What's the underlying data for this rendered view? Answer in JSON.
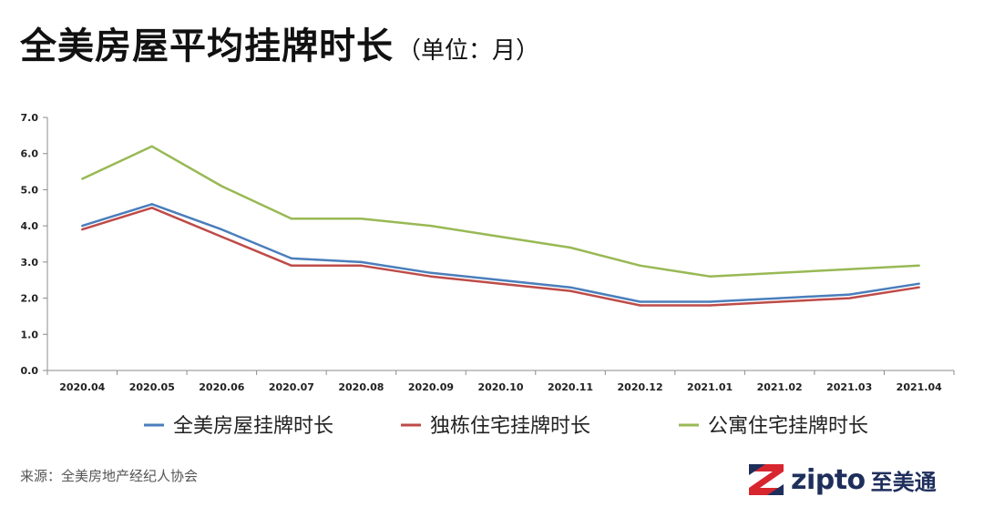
{
  "title": {
    "main": "全美房屋平均挂牌时长",
    "sub": "（单位：月）"
  },
  "source": "来源：全美房地产经纪人协会",
  "brand": {
    "name": "zipto",
    "name_cn": "至美通",
    "icon": "zipto-logo-icon",
    "colors": {
      "red": "#d8262f",
      "navy": "#1f2f5c"
    }
  },
  "chart_data": {
    "type": "line",
    "categories": [
      "2020.04",
      "2020.05",
      "2020.06",
      "2020.07",
      "2020.08",
      "2020.09",
      "2020.10",
      "2020.11",
      "2020.12",
      "2021.01",
      "2021.02",
      "2021.03",
      "2021.04"
    ],
    "ylim": [
      0,
      7
    ],
    "yticks": [
      "0.0",
      "1.0",
      "2.0",
      "3.0",
      "4.0",
      "5.0",
      "6.0",
      "7.0"
    ],
    "grid": false,
    "legend_position": "bottom",
    "series": [
      {
        "name": "全美房屋挂牌时长",
        "color": "#4a7ebb",
        "values": [
          4.0,
          4.6,
          3.9,
          3.1,
          3.0,
          2.7,
          2.5,
          2.3,
          1.9,
          1.9,
          2.0,
          2.1,
          2.4
        ]
      },
      {
        "name": "独栋住宅挂牌时长",
        "color": "#be4b48",
        "values": [
          3.9,
          4.5,
          3.7,
          2.9,
          2.9,
          2.6,
          2.4,
          2.2,
          1.8,
          1.8,
          1.9,
          2.0,
          2.3
        ]
      },
      {
        "name": "公寓住宅挂牌时长",
        "color": "#98b954",
        "values": [
          5.3,
          6.2,
          5.1,
          4.2,
          4.2,
          4.0,
          3.7,
          3.4,
          2.9,
          2.6,
          2.7,
          2.8,
          2.9
        ]
      }
    ]
  }
}
